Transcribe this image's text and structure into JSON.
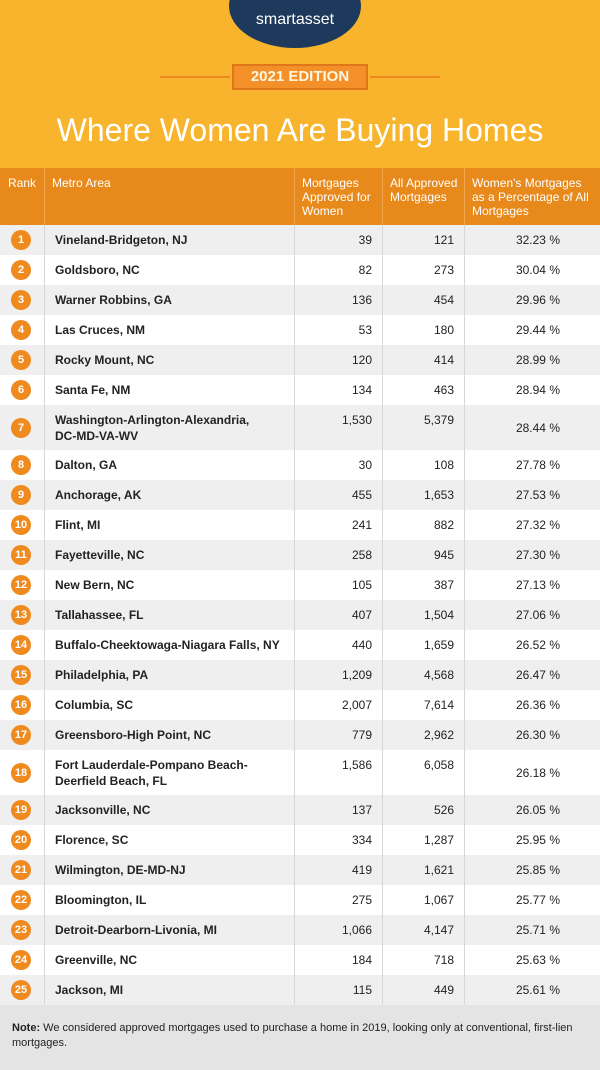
{
  "header": {
    "logo": "smartasset",
    "edition": "2021 EDITION",
    "title": "Where Women Are Buying Homes"
  },
  "table": {
    "columns": [
      "Rank",
      "Metro Area",
      "Mortgages Approved for Women",
      "All Approved Mortgages",
      "Women's Mortgages as a Percentage of All Mortgages"
    ],
    "rows": [
      [
        "1",
        [
          "Vineland-Bridgeton, NJ"
        ],
        "39",
        "121",
        "32.23 %"
      ],
      [
        "2",
        [
          "Goldsboro, NC"
        ],
        "82",
        "273",
        "30.04 %"
      ],
      [
        "3",
        [
          "Warner Robbins, GA"
        ],
        "136",
        "454",
        "29.96 %"
      ],
      [
        "4",
        [
          "Las Cruces, NM"
        ],
        "53",
        "180",
        "29.44 %"
      ],
      [
        "5",
        [
          "Rocky Mount, NC"
        ],
        "120",
        "414",
        "28.99 %"
      ],
      [
        "6",
        [
          "Santa Fe, NM"
        ],
        "134",
        "463",
        "28.94 %"
      ],
      [
        "7",
        [
          "Washington-Arlington-Alexandria,",
          "DC-MD-VA-WV"
        ],
        "1,530",
        "5,379",
        "28.44 %"
      ],
      [
        "8",
        [
          "Dalton, GA"
        ],
        "30",
        "108",
        "27.78 %"
      ],
      [
        "9",
        [
          "Anchorage, AK"
        ],
        "455",
        "1,653",
        "27.53 %"
      ],
      [
        "10",
        [
          "Flint, MI"
        ],
        "241",
        "882",
        "27.32 %"
      ],
      [
        "11",
        [
          "Fayetteville, NC"
        ],
        "258",
        "945",
        "27.30 %"
      ],
      [
        "12",
        [
          "New Bern, NC"
        ],
        "105",
        "387",
        "27.13 %"
      ],
      [
        "13",
        [
          "Tallahassee, FL"
        ],
        "407",
        "1,504",
        "27.06 %"
      ],
      [
        "14",
        [
          "Buffalo-Cheektowaga-Niagara Falls, NY"
        ],
        "440",
        "1,659",
        "26.52 %"
      ],
      [
        "15",
        [
          "Philadelphia, PA"
        ],
        "1,209",
        "4,568",
        "26.47 %"
      ],
      [
        "16",
        [
          "Columbia, SC"
        ],
        "2,007",
        "7,614",
        "26.36 %"
      ],
      [
        "17",
        [
          "Greensboro-High Point, NC"
        ],
        "779",
        "2,962",
        "26.30 %"
      ],
      [
        "18",
        [
          "Fort Lauderdale-Pompano Beach-",
          "Deerfield Beach, FL"
        ],
        "1,586",
        "6,058",
        "26.18 %"
      ],
      [
        "19",
        [
          "Jacksonville, NC"
        ],
        "137",
        "526",
        "26.05 %"
      ],
      [
        "20",
        [
          "Florence, SC"
        ],
        "334",
        "1,287",
        "25.95 %"
      ],
      [
        "21",
        [
          "Wilmington, DE-MD-NJ"
        ],
        "419",
        "1,621",
        "25.85 %"
      ],
      [
        "22",
        [
          "Bloomington, IL"
        ],
        "275",
        "1,067",
        "25.77 %"
      ],
      [
        "23",
        [
          "Detroit-Dearborn-Livonia, MI"
        ],
        "1,066",
        "4,147",
        "25.71 %"
      ],
      [
        "24",
        [
          "Greenville, NC"
        ],
        "184",
        "718",
        "25.63 %"
      ],
      [
        "25",
        [
          "Jackson, MI"
        ],
        "115",
        "449",
        "25.61 %"
      ]
    ]
  },
  "note": {
    "label": "Note:",
    "text": "We considered approved mortgages used to purchase a home in 2019, looking only at conventional, first-lien mortgages."
  }
}
